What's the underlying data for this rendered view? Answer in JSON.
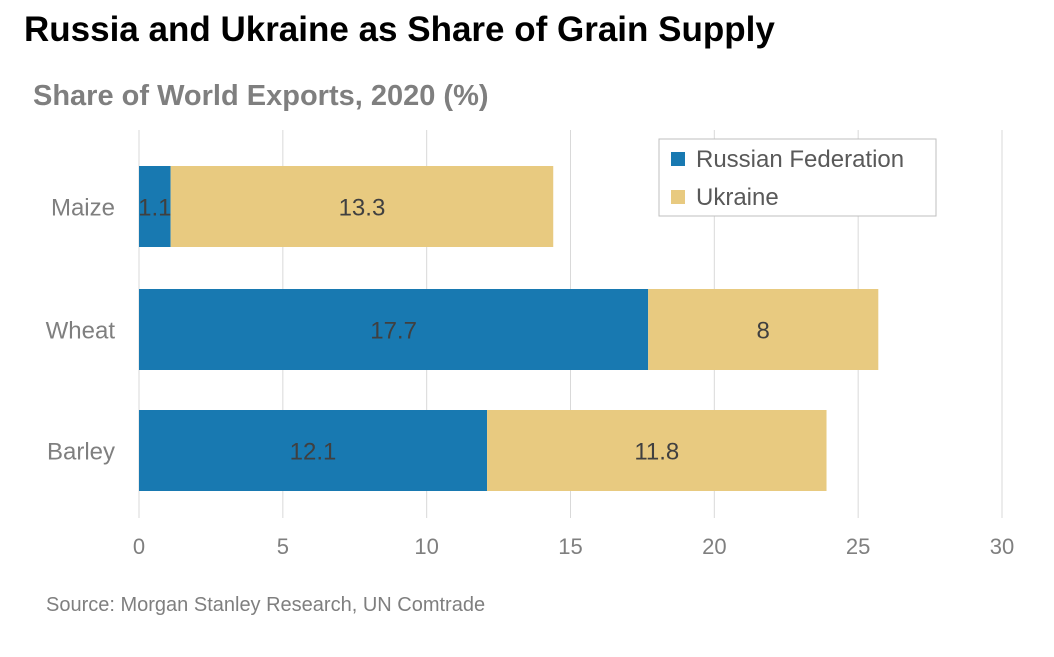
{
  "header": {
    "title": "Russia and Ukraine as Share of Grain Supply",
    "subtitle": "Share of World Exports, 2020 (%)"
  },
  "footer": {
    "source": "Source: Morgan Stanley Research, UN Comtrade"
  },
  "chart_data": {
    "type": "bar",
    "orientation": "horizontal",
    "stacked": true,
    "title": "Russia and Ukraine as Share of Grain Supply",
    "subtitle": "Share of World Exports, 2020 (%)",
    "categories": [
      "Maize",
      "Wheat",
      "Barley"
    ],
    "series": [
      {
        "name": "Russian Federation",
        "values": [
          1.1,
          17.7,
          12.1
        ],
        "labels": [
          "1.1",
          "17.7",
          "12.1"
        ],
        "color": "#1879b1"
      },
      {
        "name": "Ukraine",
        "values": [
          13.3,
          8,
          11.8
        ],
        "labels": [
          "13.3",
          "8",
          "11.8"
        ],
        "color": "#e8ca80"
      }
    ],
    "xlim": [
      0,
      30
    ],
    "xticks": [
      0,
      5,
      10,
      15,
      20,
      25,
      30
    ],
    "grid": "vertical",
    "legend": "top-right"
  }
}
